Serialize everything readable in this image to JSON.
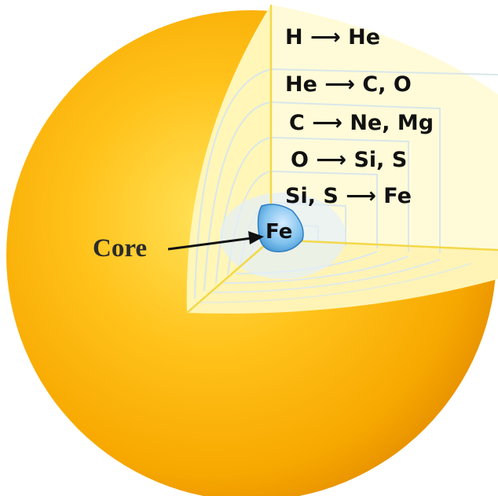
{
  "diagram": {
    "core_label": "Core",
    "core_element": "Fe",
    "shells": [
      {
        "text": "H ⟶ He"
      },
      {
        "text": "He ⟶ C, O"
      },
      {
        "text": "C ⟶ Ne, Mg"
      },
      {
        "text": "O ⟶ Si, S"
      },
      {
        "text": "Si, S ⟶ Fe"
      }
    ],
    "colors": {
      "star_outer": "#f5a200",
      "star_mid": "#ffc21a",
      "star_highlight": "#ffe35a",
      "shell_fill": "#fffbd2",
      "inner_shell": "#e8f2ff",
      "core_fill": "#78c0ec"
    }
  }
}
